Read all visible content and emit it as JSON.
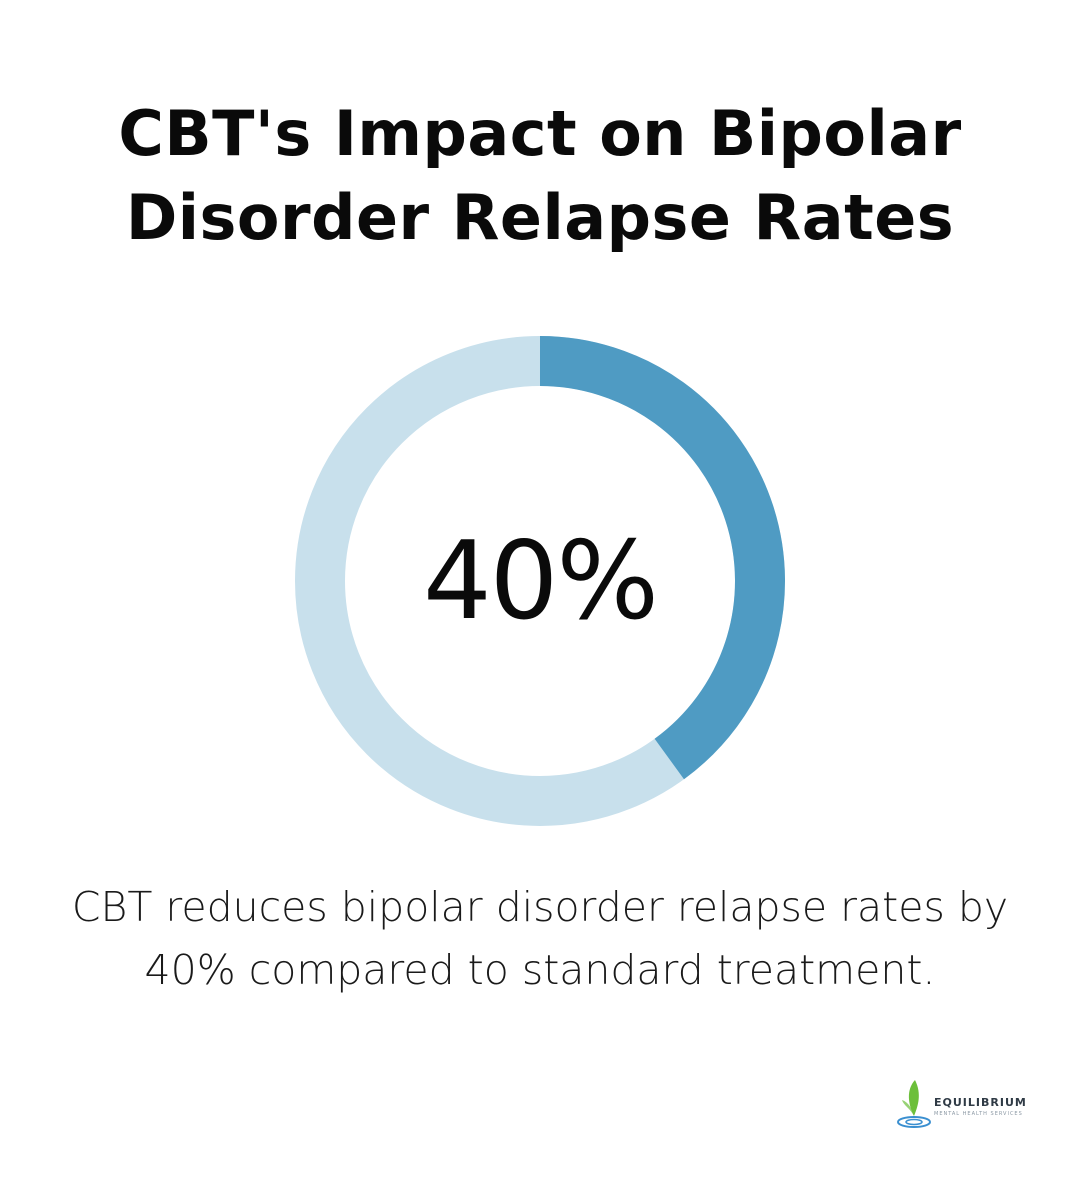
{
  "title": {
    "line1": "CBT's Impact on Bipolar",
    "line2": "Disorder Relapse Rates"
  },
  "chart_data": {
    "type": "pie",
    "variant": "donut",
    "value_percent": 40,
    "center_label": "40%",
    "colors": {
      "filled": "#4f9bc3",
      "track": "#c8e0ec"
    }
  },
  "caption": {
    "line1": "CBT reduces bipolar disorder relapse rates by",
    "line2": "40% compared to standard treatment."
  },
  "logo": {
    "name": "EQUILIBRIUM",
    "tagline": "MENTAL HEALTH SERVICES",
    "colors": {
      "leaf": "#6cbf3a",
      "water": "#3a8fd0"
    }
  }
}
